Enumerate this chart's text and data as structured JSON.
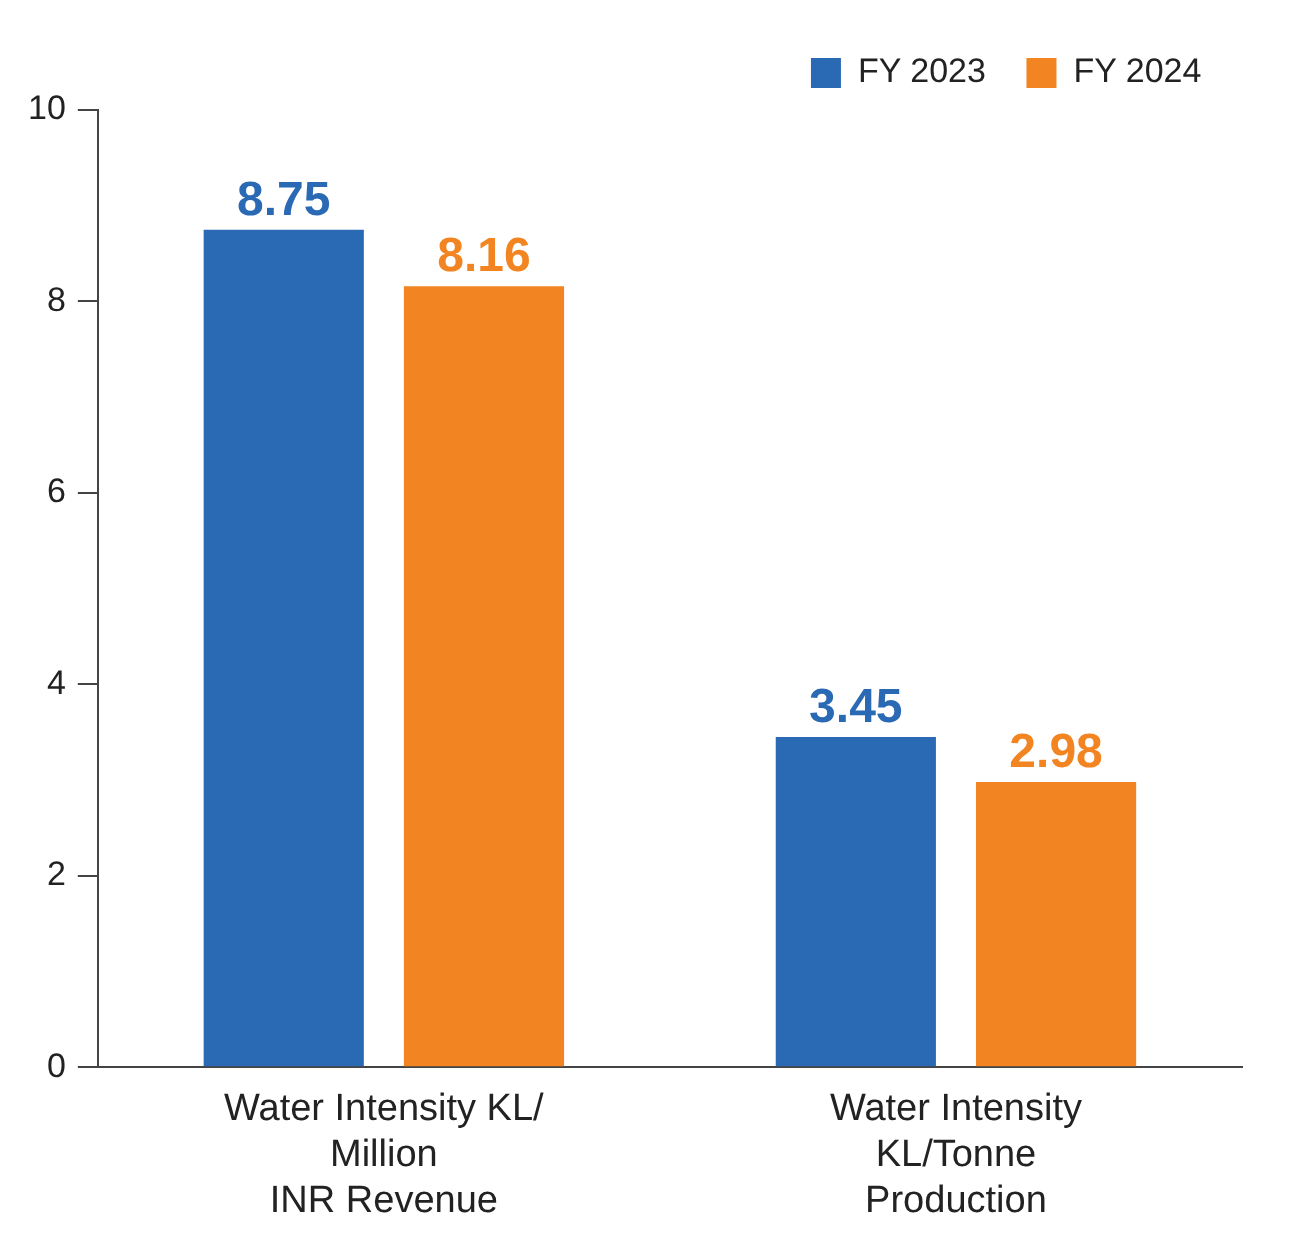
{
  "chart_data": {
    "type": "bar",
    "categories": [
      "Water Intensity KL/\nMillion\nINR Revenue",
      "Water Intensity\nKL/Tonne\nProduction"
    ],
    "series": [
      {
        "name": "FY 2023",
        "color": "#2a69b4",
        "values": [
          8.75,
          3.45
        ]
      },
      {
        "name": "FY 2024",
        "color": "#f28522",
        "values": [
          8.16,
          2.98
        ]
      }
    ],
    "ylim": [
      0,
      10
    ],
    "yticks": [
      0,
      2,
      4,
      6,
      8,
      10
    ],
    "grid": false,
    "legend": "top right",
    "data_labels": true
  }
}
